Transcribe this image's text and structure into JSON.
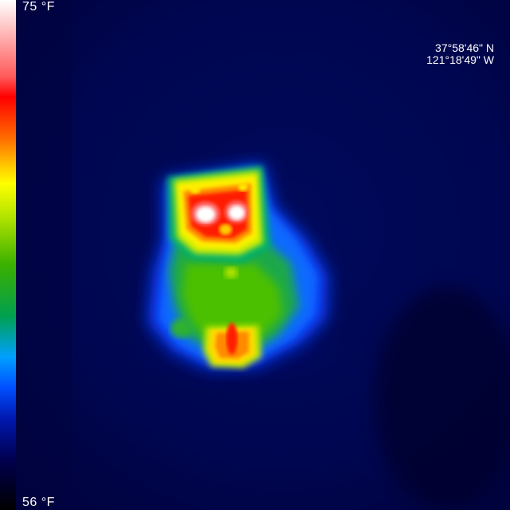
{
  "scale": {
    "max_label": "75 °F",
    "min_label": "56 °F",
    "palette": [
      "#ffffff",
      "#ff0000",
      "#ffd000",
      "#ffff00",
      "#3ab000",
      "#00a0ff",
      "#0018b0",
      "#000000"
    ]
  },
  "location": {
    "latitude": "37°58'46\" N",
    "longitude": "121°18'49\" W"
  }
}
